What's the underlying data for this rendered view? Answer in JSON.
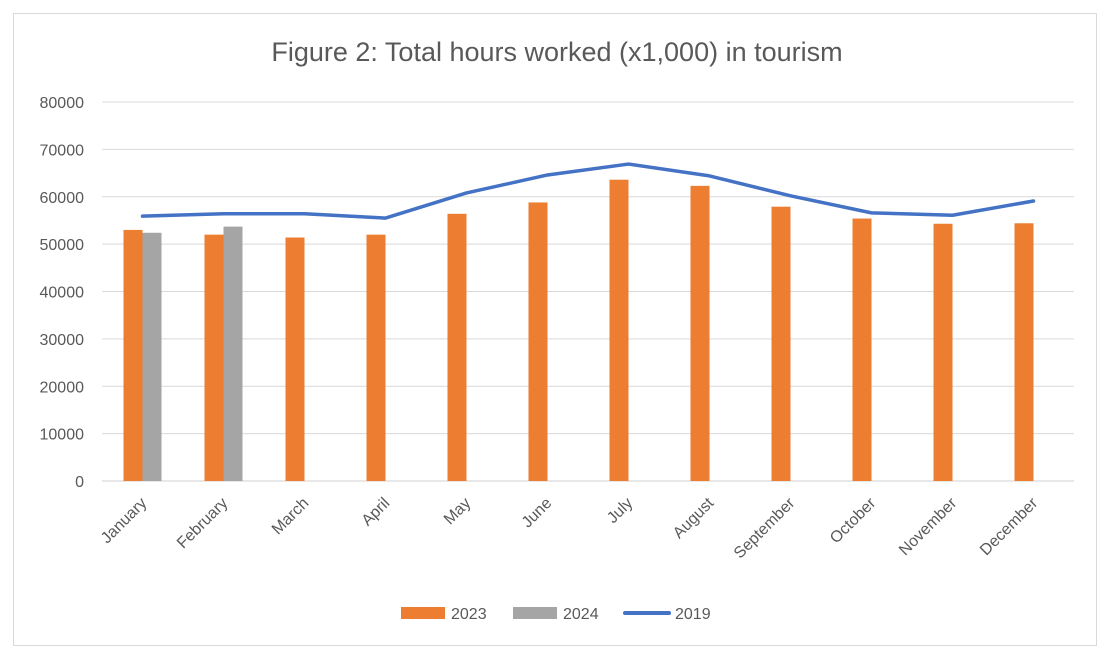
{
  "chart_data": {
    "type": "bar",
    "title": "Figure 2: Total hours worked (x1,000) in tourism",
    "xlabel": "",
    "ylabel": "",
    "ylim": [
      0,
      80000
    ],
    "yticks": [
      0,
      10000,
      20000,
      30000,
      40000,
      50000,
      60000,
      70000,
      80000
    ],
    "grid": true,
    "legend_position": "bottom",
    "categories": [
      "January",
      "February",
      "March",
      "April",
      "May",
      "June",
      "July",
      "August",
      "September",
      "October",
      "November",
      "December"
    ],
    "series": [
      {
        "name": "2023",
        "type": "bar",
        "color": "#ED7D31",
        "values": [
          53000,
          52000,
          51400,
          52000,
          56400,
          58800,
          63600,
          62300,
          57900,
          55400,
          54300,
          54400
        ]
      },
      {
        "name": "2024",
        "type": "bar",
        "color": "#A5A5A5",
        "values": [
          52400,
          53700,
          null,
          null,
          null,
          null,
          null,
          null,
          null,
          null,
          null,
          null
        ]
      },
      {
        "name": "2019",
        "type": "line",
        "color": "#4472C4",
        "values": [
          55900,
          56400,
          56400,
          55500,
          60800,
          64600,
          66900,
          64400,
          60200,
          56600,
          56100,
          59100
        ]
      }
    ]
  }
}
